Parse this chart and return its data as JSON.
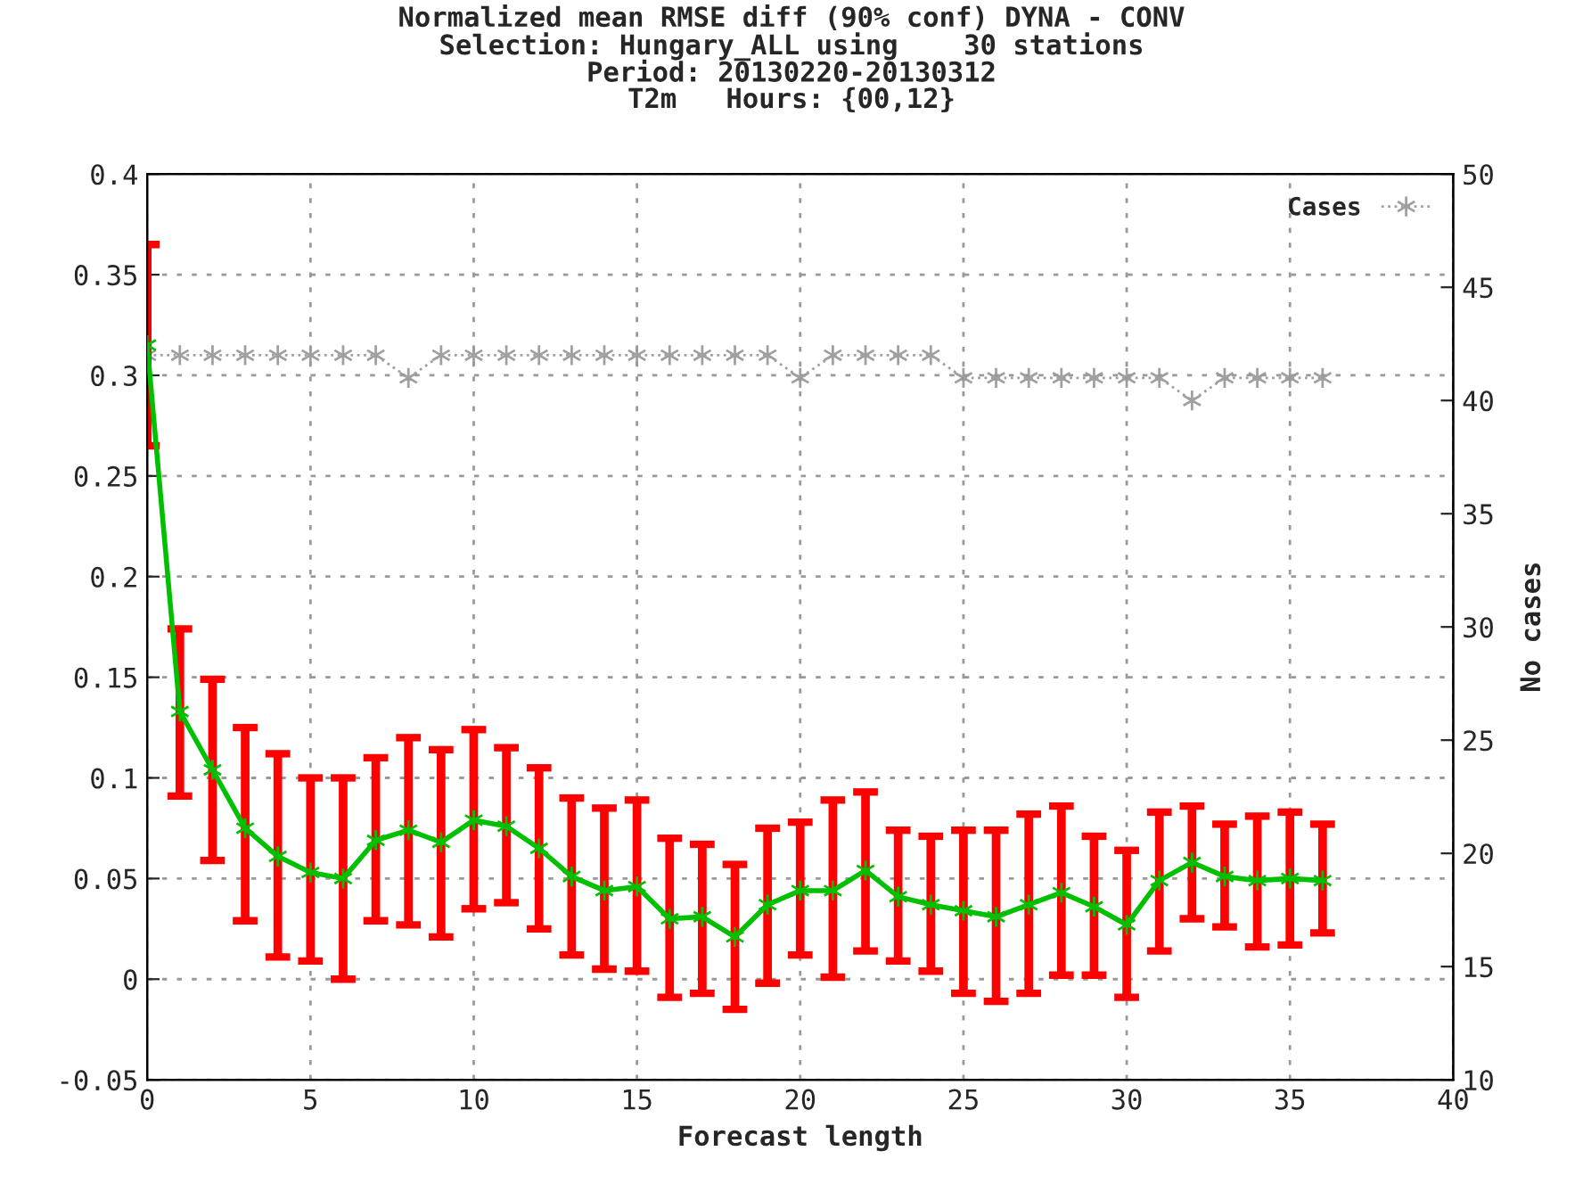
{
  "chart_data": {
    "type": "line",
    "title": "Normalized mean RMSE diff (90% conf) DYNA - CONV\nSelection: Hungary_ALL using    30 stations\nPeriod: 20130220-20130312\nT2m   Hours: {00,12}",
    "xlabel": "Forecast length",
    "y2label": "No cases",
    "x": [
      0,
      1,
      2,
      3,
      4,
      5,
      6,
      7,
      8,
      9,
      10,
      11,
      12,
      13,
      14,
      15,
      16,
      17,
      18,
      19,
      20,
      21,
      22,
      23,
      24,
      25,
      26,
      27,
      28,
      29,
      30,
      31,
      32,
      33,
      34,
      35,
      36
    ],
    "series": [
      {
        "color": "#00c000",
        "marker": "cross",
        "line_style": "solid",
        "values": [
          0.315,
          0.133,
          0.104,
          0.075,
          0.061,
          0.053,
          0.05,
          0.069,
          0.074,
          0.068,
          0.079,
          0.076,
          0.065,
          0.051,
          0.044,
          0.046,
          0.03,
          0.031,
          0.021,
          0.037,
          0.044,
          0.044,
          0.054,
          0.041,
          0.037,
          0.034,
          0.031,
          0.037,
          0.043,
          0.036,
          0.027,
          0.049,
          0.058,
          0.051,
          0.049,
          0.05,
          0.049
        ],
        "errors": [
          [
            0.265,
            0.365
          ],
          [
            0.091,
            0.174
          ],
          [
            0.059,
            0.149
          ],
          [
            0.029,
            0.125
          ],
          [
            0.011,
            0.112
          ],
          [
            0.009,
            0.1
          ],
          [
            0.0,
            0.1
          ],
          [
            0.029,
            0.11
          ],
          [
            0.027,
            0.12
          ],
          [
            0.021,
            0.114
          ],
          [
            0.035,
            0.124
          ],
          [
            0.038,
            0.115
          ],
          [
            0.025,
            0.105
          ],
          [
            0.012,
            0.09
          ],
          [
            0.005,
            0.085
          ],
          [
            0.004,
            0.089
          ],
          [
            -0.009,
            0.07
          ],
          [
            -0.007,
            0.067
          ],
          [
            -0.015,
            0.057
          ],
          [
            -0.002,
            0.075
          ],
          [
            0.012,
            0.078
          ],
          [
            0.001,
            0.089
          ],
          [
            0.014,
            0.093
          ],
          [
            0.009,
            0.074
          ],
          [
            0.004,
            0.071
          ],
          [
            -0.007,
            0.074
          ],
          [
            -0.011,
            0.074
          ],
          [
            -0.007,
            0.082
          ],
          [
            0.002,
            0.086
          ],
          [
            0.002,
            0.071
          ],
          [
            -0.009,
            0.064
          ],
          [
            0.014,
            0.083
          ],
          [
            0.03,
            0.086
          ],
          [
            0.026,
            0.077
          ],
          [
            0.016,
            0.081
          ],
          [
            0.017,
            0.083
          ],
          [
            0.023,
            0.077
          ]
        ]
      },
      {
        "name": "Cases",
        "color": "#a0a0a0",
        "marker": "cross",
        "line_style": "dotted",
        "axis": "y2",
        "values": [
          42,
          42,
          42,
          42,
          42,
          42,
          42,
          42,
          41,
          42,
          42,
          42,
          42,
          42,
          42,
          42,
          42,
          42,
          42,
          42,
          41,
          42,
          42,
          42,
          42,
          41,
          41,
          41,
          41,
          41,
          41,
          41,
          40,
          41,
          41,
          41,
          41
        ]
      }
    ],
    "xlim": [
      0,
      40
    ],
    "xticks": [
      0,
      5,
      10,
      15,
      20,
      25,
      30,
      35,
      40
    ],
    "ylim": [
      -0.05,
      0.4
    ],
    "yticks": [
      {
        "value": -0.05,
        "label": "-0.05"
      },
      0,
      0.05,
      0.1,
      0.15,
      0.2,
      0.25,
      0.3,
      0.35,
      0.4
    ],
    "y2lim": [
      10,
      50
    ],
    "y2ticks": [
      10,
      15,
      20,
      25,
      30,
      35,
      40,
      45,
      50
    ],
    "grid": true,
    "legend": "top right"
  }
}
